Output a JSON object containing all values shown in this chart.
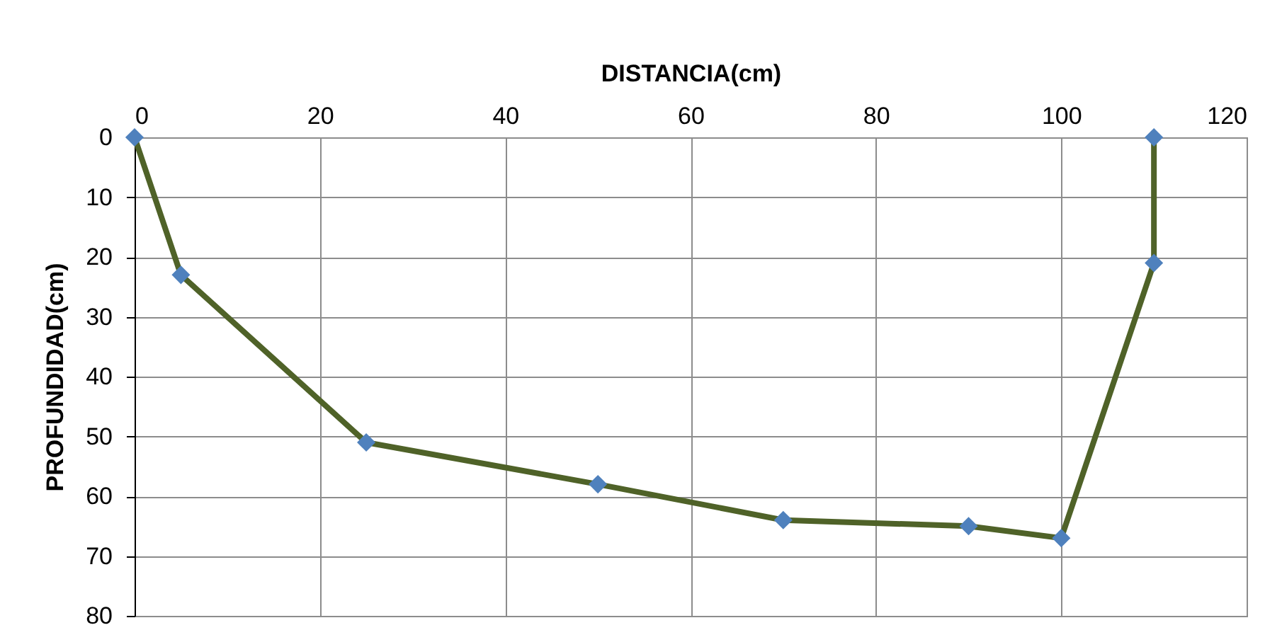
{
  "chart_data": {
    "type": "line",
    "xlabel": "DISTANCIA(cm)",
    "ylabel": "PROFUNDIDAD(cm)",
    "x": [
      0,
      5,
      25,
      50,
      70,
      90,
      100,
      110,
      110
    ],
    "series": [
      {
        "color": "#4f6228",
        "colors": [
          "#4f81bd",
          "#4f81bd",
          "#4f81bd",
          "#4f81bd",
          "#4f81bd",
          "#4f81bd",
          "#4f81bd",
          "#4f81bd",
          "#4f81bd"
        ],
        "values": [
          0,
          23,
          51,
          58,
          64,
          65,
          67,
          21,
          0
        ]
      }
    ],
    "xlim": [
      0,
      120
    ],
    "xticks": [
      0,
      20,
      40,
      60,
      80,
      100,
      120
    ],
    "ylim": [
      80,
      0
    ],
    "yticks": [
      0,
      10,
      20,
      30,
      40,
      50,
      60,
      70,
      80
    ],
    "grid": true,
    "marker": "diamond",
    "line_style": "solid"
  }
}
